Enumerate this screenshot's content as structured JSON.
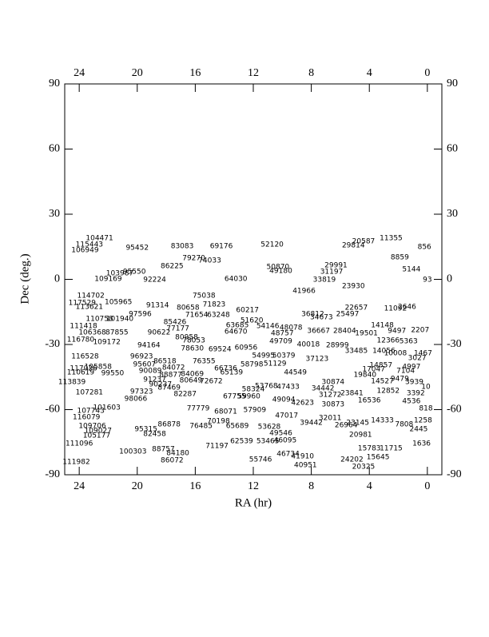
{
  "chart_data": {
    "type": "scatter",
    "xlabel": "RA (hr)",
    "ylabel": "Dec (deg.)",
    "xlim": [
      25,
      -1
    ],
    "ylim": [
      -90,
      90
    ],
    "xticks": [
      24,
      20,
      16,
      12,
      8,
      4,
      0
    ],
    "yticks": [
      -90,
      -60,
      -30,
      0,
      30,
      60,
      90
    ],
    "color": "#000000",
    "labels": [
      "104471",
      "115443",
      "106949",
      "95452",
      "83083",
      "69176",
      "52120",
      "29814",
      "20587",
      "11355",
      "856",
      "8859",
      "79270",
      "74033",
      "86225",
      "50870",
      "49180",
      "29991",
      "31197",
      "5144",
      "103987",
      "95550",
      "109169",
      "92224",
      "64030",
      "33819",
      "93",
      "23930",
      "41966",
      "75038",
      "114702",
      "117529",
      "105965",
      "113621",
      "91314",
      "71823",
      "80658",
      "60217",
      "22657",
      "11092",
      "2646",
      "97596",
      "71654",
      "63248",
      "36812",
      "25497",
      "34673",
      "110758",
      "101940",
      "85426",
      "51620",
      "63685",
      "54146",
      "48078",
      "111418",
      "77177",
      "14148",
      "36667",
      "28404",
      "2207",
      "106368",
      "87855",
      "90622",
      "64670",
      "48757",
      "19501",
      "9497",
      "80958",
      "78053",
      "12366",
      "5363",
      "116780",
      "109172",
      "49709",
      "94164",
      "78630",
      "69524",
      "60956",
      "40018",
      "28999",
      "33485",
      "14056",
      "10008",
      "1467",
      "3027",
      "116528",
      "96923",
      "86518",
      "76355",
      "54995",
      "50379",
      "37123",
      "51129",
      "58798",
      "14857",
      "4997",
      "117026",
      "105858",
      "95607",
      "84072",
      "66736",
      "65139",
      "17047",
      "7104",
      "44549",
      "110619",
      "99550",
      "90089",
      "88877",
      "84069",
      "19840",
      "113839",
      "91237",
      "80649",
      "72672",
      "30874",
      "14527",
      "9479",
      "3939",
      "90237",
      "87469",
      "58324",
      "53768",
      "47433",
      "34442",
      "10",
      "107281",
      "97323",
      "82287",
      "67755",
      "59960",
      "31272",
      "23841",
      "12852",
      "3392",
      "98066",
      "49094",
      "42623",
      "30873",
      "16536",
      "4536",
      "101603",
      "107743",
      "77779",
      "68071",
      "57909",
      "818",
      "47017",
      "32011",
      "116079",
      "70198",
      "76485",
      "86878",
      "65689",
      "53628",
      "39442",
      "26964",
      "23145",
      "14333",
      "7808",
      "1258",
      "109706",
      "2445",
      "109027",
      "95315",
      "105177",
      "82458",
      "49546",
      "20981",
      "111096",
      "62539",
      "53465",
      "46095",
      "71197",
      "15783",
      "11715",
      "1636",
      "88757",
      "100303",
      "84180",
      "46734",
      "41910",
      "15645",
      "24202",
      "111982",
      "86072",
      "55746",
      "40951",
      "20325"
    ],
    "x": [
      22.6,
      23.3,
      23.6,
      20.0,
      16.9,
      14.2,
      10.7,
      5.1,
      4.4,
      2.5,
      0.2,
      1.9,
      16.1,
      15.0,
      17.6,
      10.3,
      10.1,
      6.3,
      6.6,
      1.1,
      21.2,
      20.2,
      22.0,
      18.8,
      13.2,
      7.1,
      0.0,
      5.1,
      8.5,
      15.4,
      23.2,
      23.8,
      21.3,
      23.3,
      18.6,
      14.7,
      16.5,
      12.4,
      4.9,
      2.2,
      1.4,
      19.8,
      15.9,
      14.4,
      7.9,
      5.5,
      7.3,
      22.6,
      21.2,
      17.4,
      12.1,
      13.1,
      11.0,
      9.4,
      23.7,
      17.2,
      3.1,
      7.5,
      5.7,
      0.5,
      23.1,
      21.4,
      18.5,
      13.2,
      10.0,
      4.2,
      2.1,
      16.6,
      16.1,
      2.7,
      1.3,
      23.9,
      22.1,
      10.1,
      19.2,
      16.2,
      14.3,
      12.5,
      8.2,
      6.2,
      4.9,
      3.0,
      2.2,
      0.3,
      0.7,
      23.6,
      19.7,
      18.1,
      15.4,
      11.3,
      9.9,
      7.6,
      10.5,
      12.1,
      3.2,
      1.1,
      23.7,
      22.7,
      19.5,
      17.5,
      13.9,
      13.5,
      3.7,
      1.5,
      9.1,
      23.9,
      21.7,
      19.1,
      17.7,
      16.2,
      4.3,
      24.5,
      18.8,
      16.3,
      14.9,
      6.5,
      3.1,
      1.9,
      0.9,
      18.4,
      17.8,
      12.0,
      11.1,
      9.6,
      7.2,
      0.1,
      23.3,
      19.7,
      16.7,
      13.3,
      12.3,
      6.7,
      5.2,
      2.7,
      0.8,
      20.1,
      9.9,
      8.6,
      6.5,
      4.0,
      1.1,
      22.1,
      23.2,
      15.8,
      13.9,
      11.9,
      0.1,
      9.7,
      6.7,
      23.5,
      14.4,
      15.6,
      17.8,
      13.1,
      10.9,
      8.0,
      5.6,
      4.8,
      3.1,
      1.6,
      0.3,
      23.1,
      0.6,
      22.7,
      19.4,
      22.8,
      18.8,
      10.1,
      4.6,
      24.0,
      12.8,
      11.0,
      9.8,
      14.5,
      4.0,
      2.5,
      0.4,
      18.2,
      20.3,
      17.2,
      9.6,
      8.6,
      3.4,
      5.2,
      24.2,
      17.6,
      11.5,
      8.4,
      4.4
    ],
    "values": [
      19.0,
      16.0,
      13.4,
      14.5,
      15.3,
      15.3,
      16.0,
      15.6,
      17.5,
      19.0,
      14.9,
      10.1,
      9.8,
      8.6,
      6.1,
      5.7,
      3.9,
      6.4,
      3.5,
      4.6,
      2.8,
      3.5,
      0.2,
      -0.2,
      0.2,
      -0.2,
      -0.2,
      -3.1,
      -5.3,
      -7.5,
      -7.5,
      -10.9,
      -10.5,
      -12.7,
      -12.0,
      -11.6,
      -13.1,
      -14.2,
      -13.1,
      -13.4,
      -12.7,
      -16.0,
      -16.4,
      -16.4,
      -16.0,
      -16.0,
      -17.5,
      -18.2,
      -18.2,
      -19.7,
      -19.0,
      -21.2,
      -21.5,
      -22.3,
      -21.5,
      -22.6,
      -21.2,
      -23.7,
      -23.7,
      -23.4,
      -24.5,
      -24.5,
      -24.5,
      -24.1,
      -24.8,
      -24.8,
      -23.7,
      -26.7,
      -28.2,
      -28.2,
      -28.5,
      -27.8,
      -28.9,
      -28.5,
      -30.4,
      -31.8,
      -32.2,
      -31.5,
      -30.0,
      -30.4,
      -32.9,
      -32.9,
      -34.0,
      -34.0,
      -36.3,
      -35.5,
      -35.5,
      -37.7,
      -37.7,
      -35.1,
      -35.1,
      -36.6,
      -38.8,
      -39.2,
      -39.6,
      -40.3,
      -41.0,
      -40.3,
      -39.2,
      -40.7,
      -41.0,
      -42.9,
      -41.4,
      -42.1,
      -42.9,
      -42.9,
      -43.2,
      -42.1,
      -44.0,
      -43.6,
      -44.0,
      -47.3,
      -46.2,
      -46.6,
      -46.9,
      -47.3,
      -46.9,
      -45.8,
      -47.3,
      -48.4,
      -49.9,
      -50.6,
      -49.1,
      -49.5,
      -50.2,
      -49.5,
      -52.1,
      -51.7,
      -52.8,
      -53.9,
      -53.9,
      -53.2,
      -52.4,
      -51.3,
      -52.4,
      -55.0,
      -55.4,
      -56.9,
      -57.6,
      -55.8,
      -56.1,
      -59.1,
      -60.5,
      -59.4,
      -60.9,
      -60.2,
      -59.4,
      -62.8,
      -63.9,
      -63.5,
      -65.3,
      -67.5,
      -66.8,
      -67.5,
      -67.9,
      -66.1,
      -67.2,
      -66.1,
      -65.0,
      -66.8,
      -65.0,
      -67.5,
      -69.0,
      -69.7,
      -69.0,
      -72.0,
      -71.2,
      -70.9,
      -71.6,
      -75.6,
      -74.5,
      -74.5,
      -74.2,
      -76.7,
      -77.8,
      -77.8,
      -75.6,
      -78.2,
      -79.3,
      -80.0,
      -80.4,
      -81.5,
      -81.9,
      -83.0,
      -84.1,
      -83.4,
      -83.0,
      -85.6,
      -86.3
    ]
  }
}
